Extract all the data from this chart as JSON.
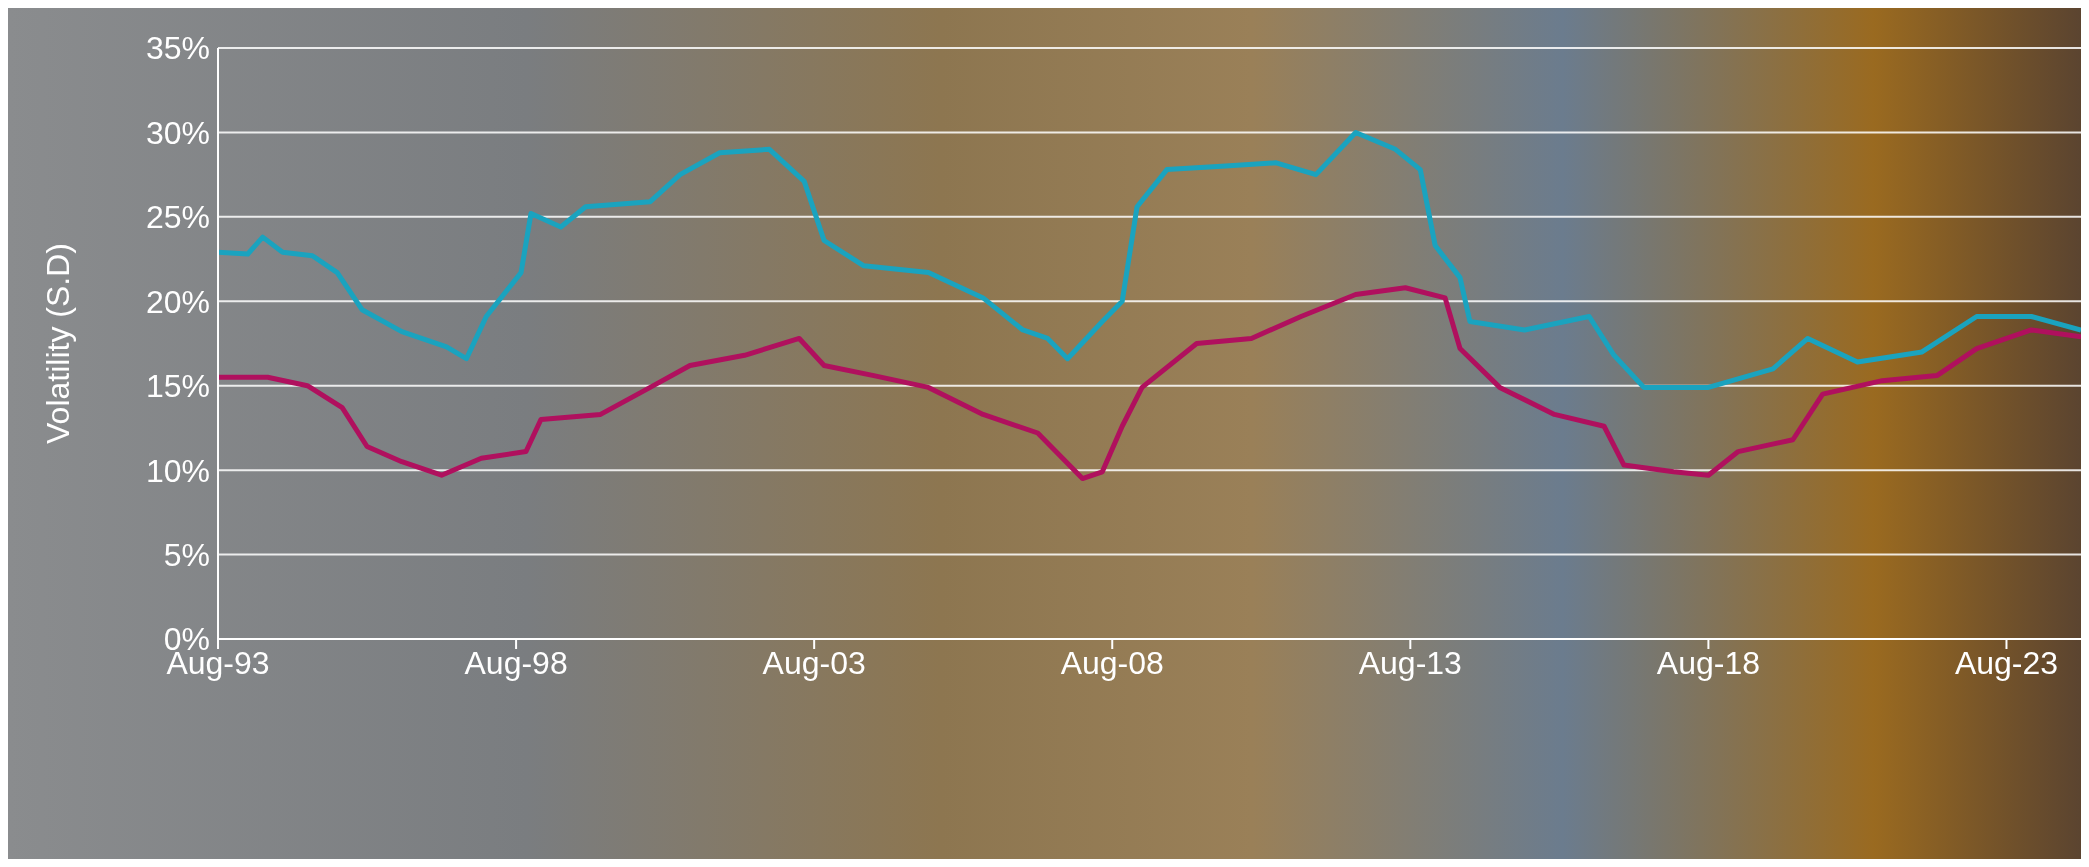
{
  "chart_data": {
    "type": "line",
    "ylabel": "Volatility (S.D)",
    "grid": "y",
    "line_style": "solid",
    "marker": "none",
    "xlim": [
      "1993-08",
      "2024-11"
    ],
    "xticks": [
      {
        "value": "1993-08",
        "label": "Aug-93"
      },
      {
        "value": "1998-08",
        "label": "Aug-98"
      },
      {
        "value": "2003-08",
        "label": "Aug-03"
      },
      {
        "value": "2008-08",
        "label": "Aug-08"
      },
      {
        "value": "2013-08",
        "label": "Aug-13"
      },
      {
        "value": "2018-08",
        "label": "Aug-18"
      },
      {
        "value": "2023-08",
        "label": "Aug-23"
      }
    ],
    "ylim": [
      0,
      35
    ],
    "yticks": [
      {
        "value": 0,
        "label": "0%"
      },
      {
        "value": 5,
        "label": "5%"
      },
      {
        "value": 10,
        "label": "10%"
      },
      {
        "value": 15,
        "label": "15%"
      },
      {
        "value": 20,
        "label": "20%"
      },
      {
        "value": 25,
        "label": "25%"
      },
      {
        "value": 30,
        "label": "30%"
      },
      {
        "value": 35,
        "label": "35%"
      }
    ],
    "series": [
      {
        "color": "#1aa3bf",
        "x": [
          "1993-08",
          "1994-02",
          "1994-05",
          "1994-09",
          "1995-03",
          "1995-08",
          "1996-01",
          "1996-09",
          "1997-06",
          "1997-10",
          "1998-02",
          "1998-09",
          "1998-11",
          "1999-05",
          "1999-10",
          "2000-11",
          "2001-05",
          "2002-01",
          "2002-11",
          "2003-06",
          "2003-10",
          "2004-06",
          "2005-07",
          "2006-06",
          "2007-02",
          "2007-07",
          "2007-11",
          "2008-06",
          "2008-10",
          "2009-01",
          "2009-07",
          "2010-06",
          "2011-05",
          "2012-01",
          "2012-09",
          "2013-05",
          "2013-10",
          "2014-01",
          "2014-06",
          "2014-08",
          "2015-07",
          "2016-08",
          "2017-01",
          "2017-07",
          "2018-08",
          "2019-09",
          "2020-04",
          "2021-02",
          "2022-03",
          "2023-02",
          "2024-01",
          "2024-11"
        ],
        "values": [
          22.9,
          22.8,
          23.8,
          22.9,
          22.7,
          21.7,
          19.5,
          18.2,
          17.3,
          16.6,
          19.1,
          21.7,
          25.2,
          24.4,
          25.6,
          25.9,
          27.5,
          28.8,
          29.0,
          27.1,
          23.6,
          22.1,
          21.7,
          20.2,
          18.3,
          17.8,
          16.6,
          18.8,
          20.0,
          25.6,
          27.8,
          28.0,
          28.2,
          27.5,
          30.0,
          29.0,
          27.8,
          23.3,
          21.4,
          18.8,
          18.3,
          19.1,
          16.8,
          14.9,
          14.9,
          16.0,
          17.8,
          16.4,
          17.0,
          19.1,
          19.1,
          18.3
        ]
      },
      {
        "color": "#b0105e",
        "x": [
          "1993-08",
          "1994-06",
          "1995-02",
          "1995-09",
          "1996-02",
          "1996-09",
          "1997-05",
          "1998-01",
          "1998-10",
          "1999-01",
          "2000-01",
          "2000-11",
          "2001-07",
          "2002-06",
          "2003-05",
          "2003-10",
          "2004-08",
          "2005-07",
          "2006-06",
          "2007-05",
          "2007-10",
          "2008-02",
          "2008-06",
          "2008-10",
          "2009-02",
          "2010-01",
          "2010-12",
          "2011-10",
          "2012-09",
          "2013-07",
          "2014-03",
          "2014-06",
          "2015-02",
          "2016-01",
          "2016-11",
          "2017-03",
          "2018-01",
          "2018-08",
          "2019-02",
          "2020-01",
          "2020-07",
          "2021-07",
          "2022-06",
          "2023-02",
          "2024-01",
          "2024-11"
        ],
        "values": [
          15.5,
          15.5,
          15.0,
          13.7,
          11.4,
          10.5,
          9.7,
          10.7,
          11.1,
          13.0,
          13.3,
          14.9,
          16.2,
          16.8,
          17.8,
          16.2,
          15.6,
          14.9,
          13.3,
          12.2,
          10.7,
          9.5,
          9.9,
          12.6,
          14.9,
          17.5,
          17.8,
          19.1,
          20.4,
          20.8,
          20.2,
          17.2,
          14.9,
          13.3,
          12.6,
          10.3,
          9.9,
          9.7,
          11.1,
          11.8,
          14.5,
          15.3,
          15.6,
          17.2,
          18.3,
          17.9
        ]
      }
    ]
  }
}
